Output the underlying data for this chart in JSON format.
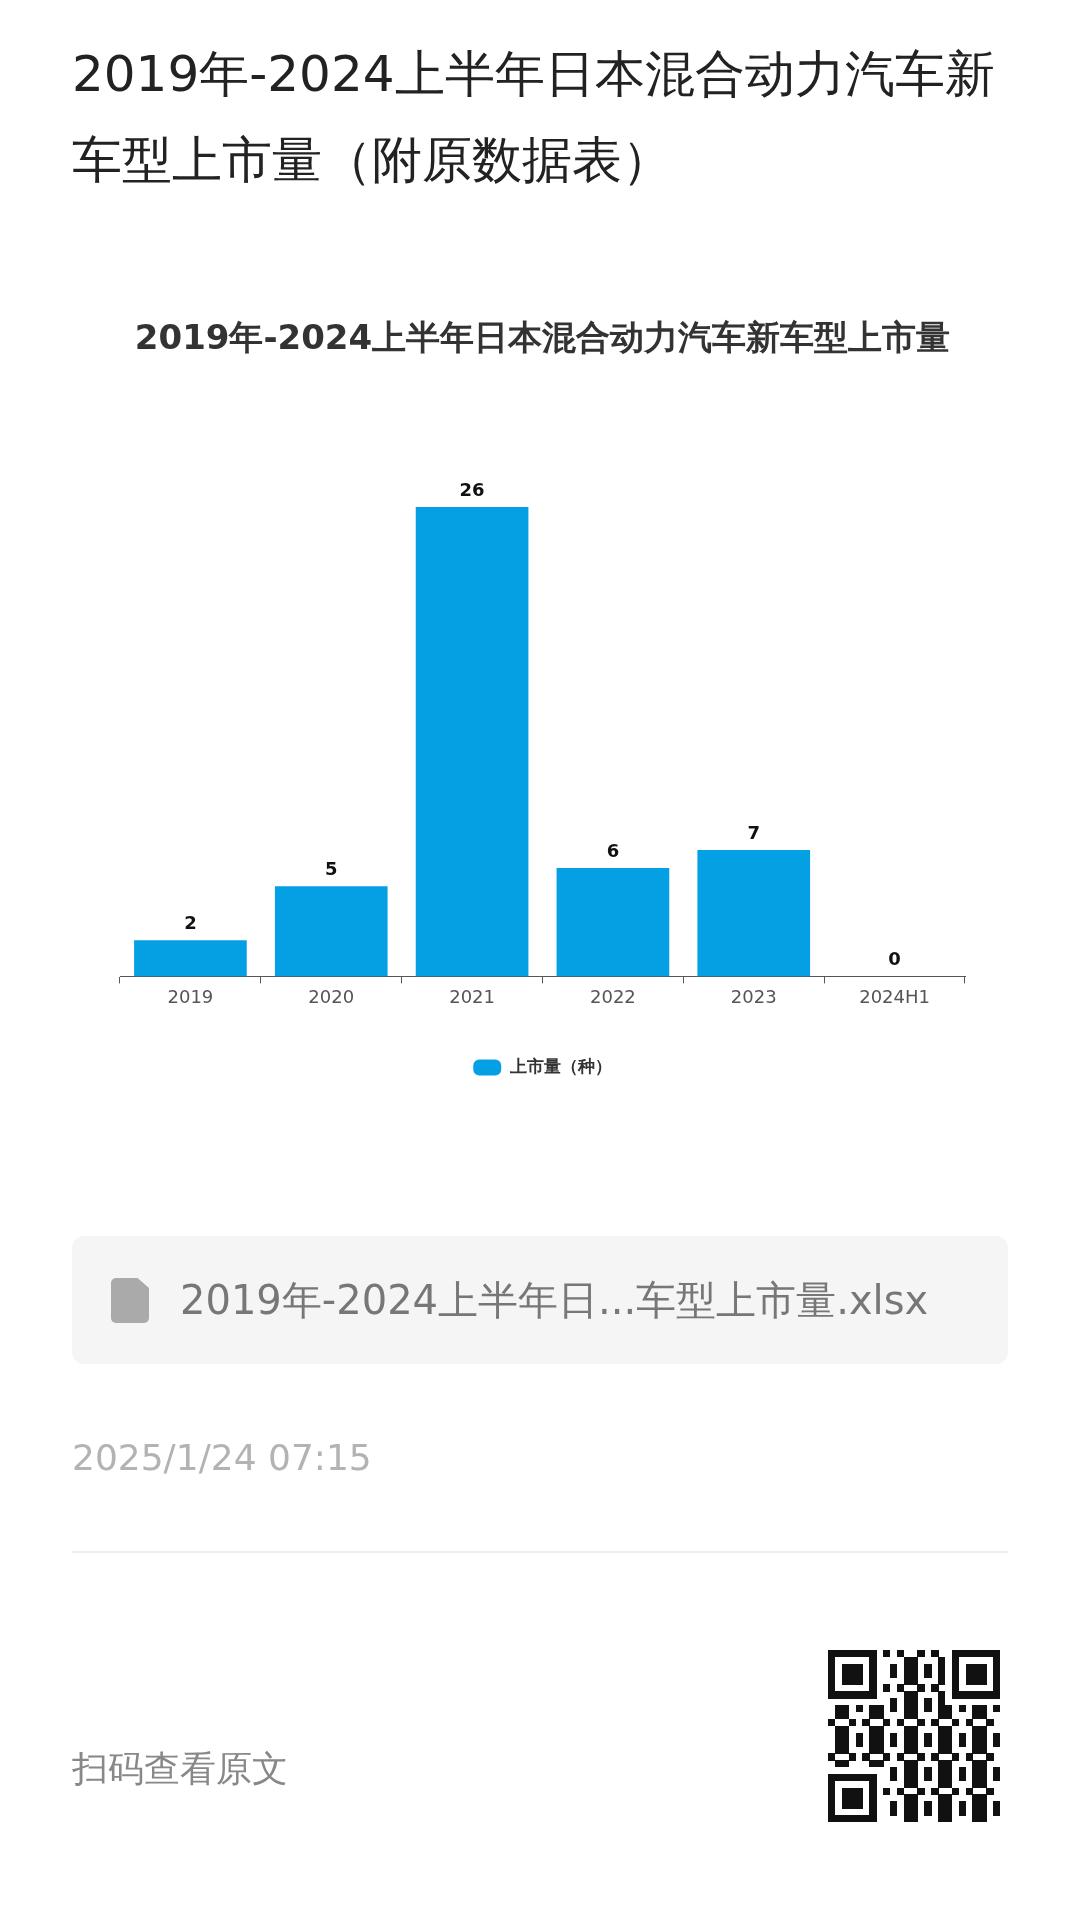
{
  "chart_data": {
    "type": "bar",
    "title": "2019年-2024上半年日本混合动力汽车新车型上市量（附原数据表）",
    "subtitle": "2019年-2024上半年日本混合动力汽车新车型上市量",
    "categories": [
      "2019",
      "2020",
      "2021",
      "2022",
      "2023",
      "2024H1"
    ],
    "series": [
      {
        "name": "上市量（种）",
        "color": "#05a0e4",
        "values": [
          2,
          5,
          26,
          6,
          7,
          0
        ]
      }
    ],
    "data_labels": true,
    "legend": "bottom",
    "grid": false,
    "tick_labels": "x",
    "annotations": [
      "2019年-2024上半年日...车型上市量.xlsx",
      "2025/1/24 07:15",
      "扫码查看原文"
    ]
  }
}
